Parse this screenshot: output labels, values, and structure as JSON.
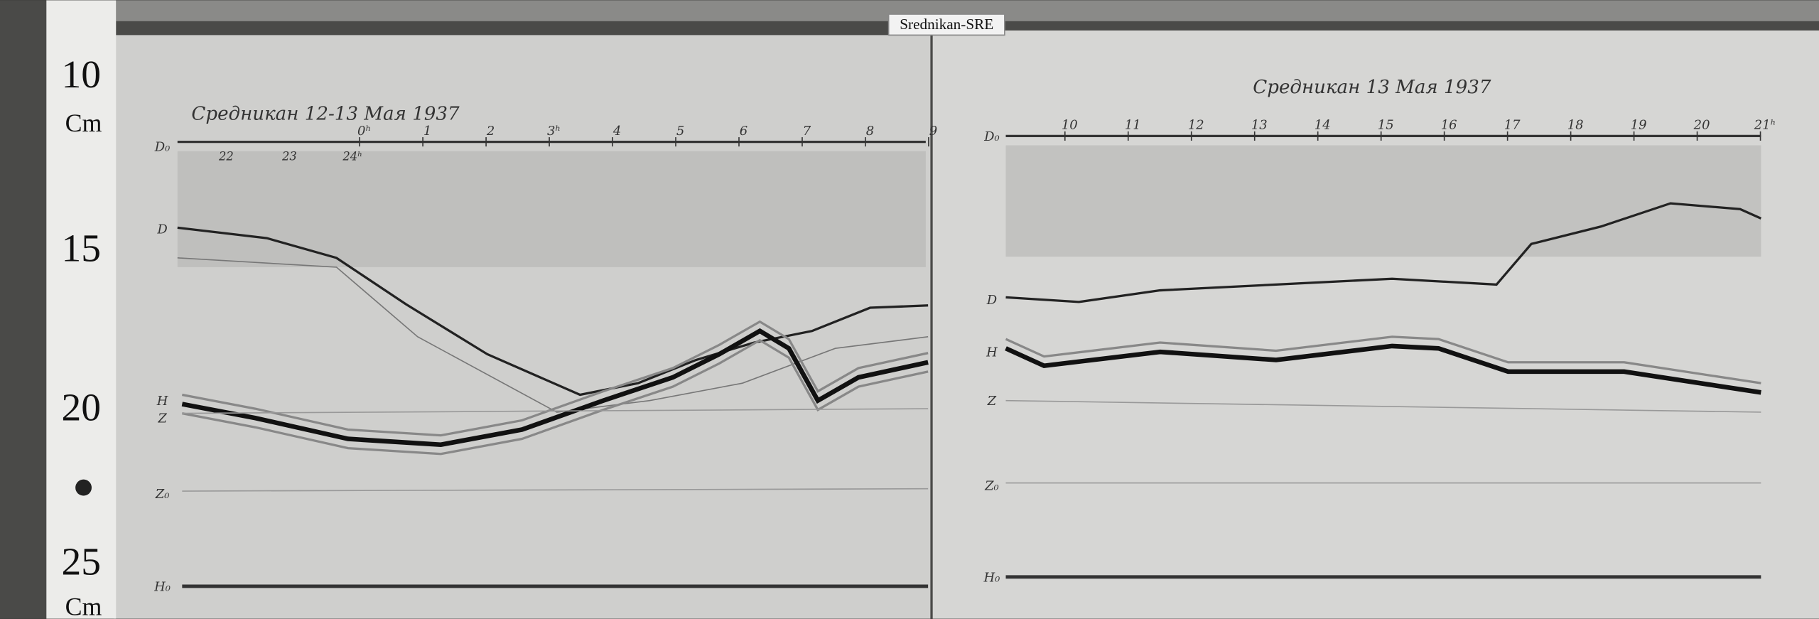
{
  "label": "Srednikan-SRE",
  "ruler": {
    "marks": [
      "10",
      "15",
      "20",
      "25"
    ],
    "units": [
      "Cm",
      "Cm"
    ]
  },
  "sheets": [
    {
      "title": "Средникан 12-13 Мая 1937",
      "hours": [
        "0ʰ",
        "1",
        "2",
        "3ʰ",
        "4",
        "5",
        "6",
        "7",
        "8",
        "9"
      ],
      "prev_hours": [
        "22",
        "23",
        "24ʰ"
      ],
      "traces": [
        "D₀",
        "D",
        "H",
        "Z",
        "Z₀",
        "H₀"
      ]
    },
    {
      "title": "Средникан 13 Мая 1937",
      "hours": [
        "10",
        "11",
        "12",
        "13",
        "14",
        "15",
        "16",
        "17",
        "18",
        "19",
        "20",
        "21ʰ"
      ],
      "traces": [
        "D₀",
        "D",
        "H",
        "Z",
        "Z₀",
        "H₀"
      ]
    }
  ]
}
